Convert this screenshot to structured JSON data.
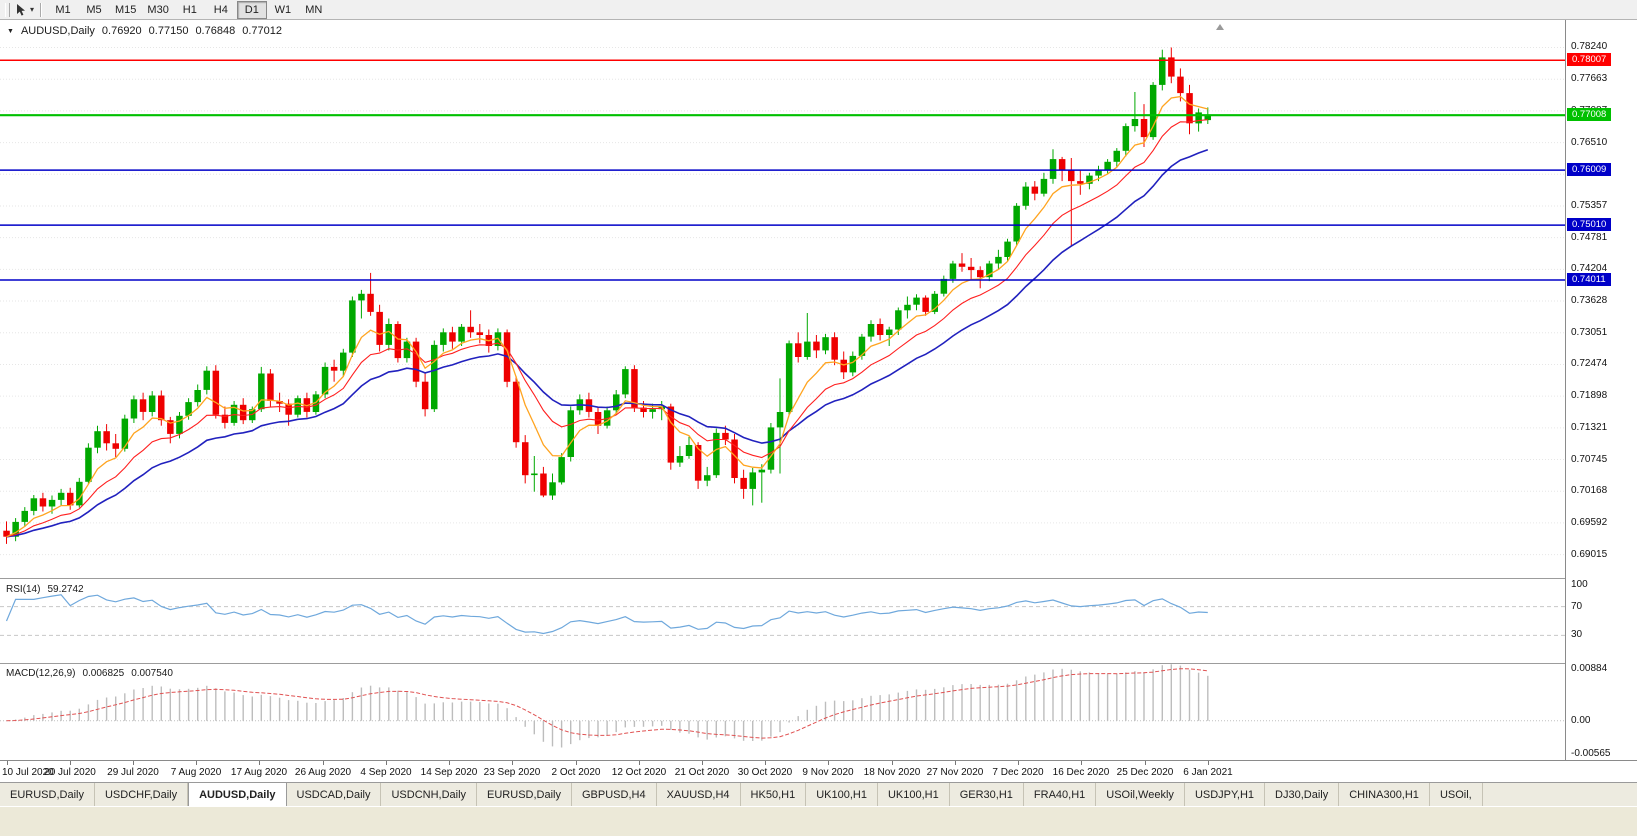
{
  "toolbar": {
    "timeframes": [
      "M1",
      "M5",
      "M15",
      "M30",
      "H1",
      "H4",
      "D1",
      "W1",
      "MN"
    ],
    "active": "D1"
  },
  "chart": {
    "symbol": "AUDUSD,Daily",
    "open": "0.76920",
    "high": "0.77150",
    "low": "0.76848",
    "close": "0.77012"
  },
  "rsi": {
    "title": "RSI(14)",
    "value": "59.2742"
  },
  "macd": {
    "title": "MACD(12,26,9)",
    "value_main": "0.006825",
    "value_signal": "0.007540"
  },
  "tabs": [
    {
      "label": "EURUSD,Daily"
    },
    {
      "label": "USDCHF,Daily"
    },
    {
      "label": "AUDUSD,Daily",
      "active": true
    },
    {
      "label": "USDCAD,Daily"
    },
    {
      "label": "USDCNH,Daily"
    },
    {
      "label": "EURUSD,Daily"
    },
    {
      "label": "GBPUSD,H4"
    },
    {
      "label": "XAUUSD,H4"
    },
    {
      "label": "HK50,H1"
    },
    {
      "label": "UK100,H1"
    },
    {
      "label": "UK100,H1"
    },
    {
      "label": "GER30,H1"
    },
    {
      "label": "FRA40,H1"
    },
    {
      "label": "USOil,Weekly"
    },
    {
      "label": "USDJPY,H1"
    },
    {
      "label": "DJ30,Daily"
    },
    {
      "label": "CHINA300,H1"
    },
    {
      "label": "USOil,"
    }
  ],
  "chart_data": {
    "type": "candlestick",
    "symbol": "AUDUSD",
    "timeframe": "Daily",
    "title": "AUDUSD,Daily 0.76920 0.77150 0.76848 0.77012",
    "price_range": [
      0.6859,
      0.7874
    ],
    "y_axis_ticks": [
      0.7824,
      0.77663,
      0.77087,
      0.7651,
      0.75934,
      0.75357,
      0.74781,
      0.74204,
      0.73628,
      0.73051,
      0.72474,
      0.71898,
      0.71321,
      0.70745,
      0.70168,
      0.69592,
      0.69015
    ],
    "h_lines": [
      {
        "name": "resistance-line-red",
        "value": 0.78007,
        "color": "#FF0000",
        "width": 1.5
      },
      {
        "name": "level-line-green",
        "value": 0.77008,
        "color": "#00C000",
        "width": 2.2
      },
      {
        "name": "support-line-blue-1",
        "value": 0.76009,
        "color": "#0000C8",
        "width": 1.5
      },
      {
        "name": "support-line-blue-2",
        "value": 0.7501,
        "color": "#0000C8",
        "width": 1.5
      },
      {
        "name": "support-line-blue-3",
        "value": 0.74011,
        "color": "#0000C8",
        "width": 1.5
      }
    ],
    "x_labels": [
      "10 Jul 2020",
      "20 Jul 2020",
      "29 Jul 2020",
      "7 Aug 2020",
      "17 Aug 2020",
      "26 Aug 2020",
      "4 Sep 2020",
      "14 Sep 2020",
      "23 Sep 2020",
      "2 Oct 2020",
      "12 Oct 2020",
      "21 Oct 2020",
      "30 Oct 2020",
      "9 Nov 2020",
      "18 Nov 2020",
      "27 Nov 2020",
      "7 Dec 2020",
      "16 Dec 2020",
      "25 Dec 2020",
      "6 Jan 2021"
    ],
    "moving_averages": [
      {
        "name": "ma-slow-blue",
        "period": 22,
        "color": "#2121BE",
        "width": 1.6
      },
      {
        "name": "ma-mid-red",
        "period": 12,
        "color": "#FF2020",
        "width": 1.1
      },
      {
        "name": "ma-fast-orange",
        "period": 6,
        "color": "#FFA420",
        "width": 1.3
      }
    ],
    "indicators": [
      {
        "name": "RSI",
        "period": 14,
        "last": 59.2742,
        "levels": [
          70,
          30
        ],
        "scale_labels": [
          {
            "label": "100",
            "value": 100
          },
          {
            "label": "70",
            "value": 70
          },
          {
            "label": "30",
            "value": 30
          }
        ],
        "color": "#6FA8DC"
      },
      {
        "name": "MACD",
        "fast": 12,
        "slow": 26,
        "signal_period": 9,
        "last_main": 0.006825,
        "last_signal": 0.00754,
        "scale_labels": [
          {
            "label": "0.00884",
            "value": 0.00884
          },
          {
            "label": "0.00",
            "value": 0
          },
          {
            "label": "-0.00565",
            "value": -0.00565
          }
        ],
        "histogram_color": "#BDBDBD",
        "signal_color": "#E05252"
      }
    ],
    "colors": {
      "bull": "#00A800",
      "bear": "#EE0000",
      "grid": "#E6E6E6",
      "rsi_level": "#C8C8C8",
      "zero_line": "#BFBFBF"
    },
    "candles": [
      [
        0.6945,
        0.6962,
        0.6921,
        0.6934
      ],
      [
        0.6934,
        0.6968,
        0.6926,
        0.6961
      ],
      [
        0.6961,
        0.6988,
        0.6952,
        0.6981
      ],
      [
        0.6981,
        0.701,
        0.6973,
        0.7004
      ],
      [
        0.7004,
        0.7014,
        0.698,
        0.6989
      ],
      [
        0.6989,
        0.7009,
        0.6976,
        0.7001
      ],
      [
        0.7001,
        0.7021,
        0.6991,
        0.7014
      ],
      [
        0.7014,
        0.7023,
        0.6983,
        0.6991
      ],
      [
        0.6991,
        0.7041,
        0.6987,
        0.7034
      ],
      [
        0.7034,
        0.7104,
        0.703,
        0.7096
      ],
      [
        0.7096,
        0.7136,
        0.7086,
        0.7126
      ],
      [
        0.7126,
        0.7139,
        0.7091,
        0.7104
      ],
      [
        0.7104,
        0.7121,
        0.7079,
        0.7094
      ],
      [
        0.7094,
        0.7156,
        0.7089,
        0.7149
      ],
      [
        0.7149,
        0.7191,
        0.7141,
        0.7184
      ],
      [
        0.7184,
        0.7196,
        0.7146,
        0.7161
      ],
      [
        0.7161,
        0.7199,
        0.7153,
        0.7191
      ],
      [
        0.7191,
        0.72,
        0.7136,
        0.7146
      ],
      [
        0.7146,
        0.7152,
        0.7104,
        0.7121
      ],
      [
        0.7121,
        0.7161,
        0.7113,
        0.7154
      ],
      [
        0.7154,
        0.7186,
        0.7147,
        0.7179
      ],
      [
        0.7179,
        0.7211,
        0.7171,
        0.7201
      ],
      [
        0.7201,
        0.7244,
        0.7193,
        0.7236
      ],
      [
        0.7236,
        0.7246,
        0.7149,
        0.7156
      ],
      [
        0.7156,
        0.7171,
        0.7131,
        0.7141
      ],
      [
        0.7141,
        0.7181,
        0.7136,
        0.7174
      ],
      [
        0.7174,
        0.7186,
        0.7139,
        0.7146
      ],
      [
        0.7146,
        0.7171,
        0.7141,
        0.7166
      ],
      [
        0.7166,
        0.7243,
        0.7161,
        0.7231
      ],
      [
        0.7231,
        0.7239,
        0.7171,
        0.7181
      ],
      [
        0.7181,
        0.7196,
        0.7161,
        0.7176
      ],
      [
        0.7176,
        0.7184,
        0.7136,
        0.7156
      ],
      [
        0.7156,
        0.7191,
        0.7151,
        0.7186
      ],
      [
        0.7186,
        0.7196,
        0.7151,
        0.7161
      ],
      [
        0.7161,
        0.7199,
        0.7156,
        0.7193
      ],
      [
        0.7193,
        0.7251,
        0.7186,
        0.7243
      ],
      [
        0.7243,
        0.7256,
        0.7216,
        0.7236
      ],
      [
        0.7236,
        0.7276,
        0.7226,
        0.7269
      ],
      [
        0.7269,
        0.7371,
        0.7261,
        0.7364
      ],
      [
        0.7364,
        0.7383,
        0.7331,
        0.7376
      ],
      [
        0.7376,
        0.7414,
        0.7336,
        0.7343
      ],
      [
        0.7343,
        0.7356,
        0.7271,
        0.7283
      ],
      [
        0.7283,
        0.7331,
        0.7273,
        0.7321
      ],
      [
        0.7321,
        0.7326,
        0.7251,
        0.7259
      ],
      [
        0.7259,
        0.7296,
        0.7251,
        0.7289
      ],
      [
        0.7289,
        0.7296,
        0.7206,
        0.7216
      ],
      [
        0.7216,
        0.7231,
        0.7153,
        0.7166
      ],
      [
        0.7166,
        0.7291,
        0.7161,
        0.7283
      ],
      [
        0.7283,
        0.7313,
        0.7271,
        0.7306
      ],
      [
        0.7306,
        0.7316,
        0.7276,
        0.7289
      ],
      [
        0.7289,
        0.7321,
        0.7281,
        0.7316
      ],
      [
        0.7316,
        0.7346,
        0.7296,
        0.7306
      ],
      [
        0.7306,
        0.7321,
        0.7286,
        0.7301
      ],
      [
        0.7301,
        0.7311,
        0.7269,
        0.7281
      ],
      [
        0.7281,
        0.7313,
        0.7273,
        0.7306
      ],
      [
        0.7306,
        0.7311,
        0.7206,
        0.7216
      ],
      [
        0.7216,
        0.7226,
        0.7096,
        0.7106
      ],
      [
        0.7106,
        0.7119,
        0.7031,
        0.7046
      ],
      [
        0.7046,
        0.7081,
        0.7016,
        0.7049
      ],
      [
        0.7049,
        0.7061,
        0.7006,
        0.7009
      ],
      [
        0.7009,
        0.7049,
        0.7001,
        0.7033
      ],
      [
        0.7033,
        0.7086,
        0.7029,
        0.7079
      ],
      [
        0.7079,
        0.7171,
        0.7071,
        0.7164
      ],
      [
        0.7164,
        0.7193,
        0.7156,
        0.7184
      ],
      [
        0.7184,
        0.7196,
        0.7151,
        0.7161
      ],
      [
        0.7161,
        0.7171,
        0.7121,
        0.7136
      ],
      [
        0.7136,
        0.7171,
        0.7131,
        0.7164
      ],
      [
        0.7164,
        0.7201,
        0.7156,
        0.7193
      ],
      [
        0.7193,
        0.7244,
        0.7186,
        0.7239
      ],
      [
        0.7239,
        0.7246,
        0.7161,
        0.7169
      ],
      [
        0.7169,
        0.7181,
        0.7151,
        0.7161
      ],
      [
        0.7161,
        0.7176,
        0.7149,
        0.7166
      ],
      [
        0.7166,
        0.7181,
        0.7146,
        0.7171
      ],
      [
        0.7171,
        0.7176,
        0.7056,
        0.7069
      ],
      [
        0.7069,
        0.7099,
        0.7061,
        0.7081
      ],
      [
        0.7081,
        0.7116,
        0.7076,
        0.7101
      ],
      [
        0.7101,
        0.7106,
        0.7021,
        0.7036
      ],
      [
        0.7036,
        0.7061,
        0.7026,
        0.7046
      ],
      [
        0.7046,
        0.7131,
        0.7041,
        0.7123
      ],
      [
        0.7123,
        0.7136,
        0.7101,
        0.7111
      ],
      [
        0.7111,
        0.7121,
        0.7031,
        0.7041
      ],
      [
        0.7041,
        0.7056,
        0.7003,
        0.7021
      ],
      [
        0.7021,
        0.7059,
        0.6991,
        0.7051
      ],
      [
        0.7051,
        0.7066,
        0.6996,
        0.7056
      ],
      [
        0.7056,
        0.7141,
        0.7049,
        0.7133
      ],
      [
        0.7133,
        0.7222,
        0.7049,
        0.7161
      ],
      [
        0.7161,
        0.7291,
        0.7156,
        0.7286
      ],
      [
        0.7286,
        0.7306,
        0.7251,
        0.7261
      ],
      [
        0.7261,
        0.7341,
        0.7256,
        0.7289
      ],
      [
        0.7289,
        0.7301,
        0.7259,
        0.7273
      ],
      [
        0.7273,
        0.7303,
        0.7266,
        0.7297
      ],
      [
        0.7297,
        0.7306,
        0.7246,
        0.7256
      ],
      [
        0.7256,
        0.7271,
        0.7221,
        0.7233
      ],
      [
        0.7233,
        0.7271,
        0.7226,
        0.7263
      ],
      [
        0.7263,
        0.7303,
        0.7256,
        0.7298
      ],
      [
        0.7298,
        0.7328,
        0.7289,
        0.7321
      ],
      [
        0.7321,
        0.7331,
        0.7291,
        0.7301
      ],
      [
        0.7301,
        0.7316,
        0.7281,
        0.7311
      ],
      [
        0.7311,
        0.7351,
        0.7301,
        0.7346
      ],
      [
        0.7346,
        0.7371,
        0.7331,
        0.7356
      ],
      [
        0.7356,
        0.7375,
        0.7346,
        0.7369
      ],
      [
        0.7369,
        0.7373,
        0.7336,
        0.7343
      ],
      [
        0.7343,
        0.7381,
        0.7339,
        0.7376
      ],
      [
        0.7376,
        0.7409,
        0.7371,
        0.7403
      ],
      [
        0.7403,
        0.7436,
        0.7396,
        0.7431
      ],
      [
        0.7431,
        0.745,
        0.7416,
        0.7425
      ],
      [
        0.7425,
        0.7441,
        0.7401,
        0.7419
      ],
      [
        0.7419,
        0.7426,
        0.7386,
        0.7406
      ],
      [
        0.7406,
        0.7436,
        0.7399,
        0.7431
      ],
      [
        0.7431,
        0.7456,
        0.7421,
        0.7443
      ],
      [
        0.7443,
        0.7476,
        0.7436,
        0.7471
      ],
      [
        0.7471,
        0.7541,
        0.7463,
        0.7536
      ],
      [
        0.7536,
        0.7579,
        0.7529,
        0.7571
      ],
      [
        0.7571,
        0.7581,
        0.7546,
        0.7558
      ],
      [
        0.7558,
        0.7596,
        0.7553,
        0.7585
      ],
      [
        0.7585,
        0.7639,
        0.7576,
        0.7621
      ],
      [
        0.7621,
        0.7625,
        0.7581,
        0.7601
      ],
      [
        0.7601,
        0.7623,
        0.7462,
        0.7581
      ],
      [
        0.7581,
        0.7601,
        0.7556,
        0.7576
      ],
      [
        0.7576,
        0.7596,
        0.7566,
        0.7591
      ],
      [
        0.7591,
        0.7609,
        0.7581,
        0.7601
      ],
      [
        0.7601,
        0.7621,
        0.7593,
        0.7616
      ],
      [
        0.7616,
        0.7641,
        0.7606,
        0.7636
      ],
      [
        0.7636,
        0.7686,
        0.7626,
        0.7681
      ],
      [
        0.7681,
        0.7743,
        0.7671,
        0.7694
      ],
      [
        0.7694,
        0.7721,
        0.7643,
        0.7661
      ],
      [
        0.7661,
        0.7761,
        0.7656,
        0.7756
      ],
      [
        0.7756,
        0.782,
        0.7746,
        0.7806
      ],
      [
        0.7806,
        0.7824,
        0.7759,
        0.7771
      ],
      [
        0.7771,
        0.7786,
        0.7726,
        0.7741
      ],
      [
        0.7741,
        0.7756,
        0.7666,
        0.7686
      ],
      [
        0.7686,
        0.7713,
        0.7671,
        0.7706
      ],
      [
        0.7692,
        0.7715,
        0.76848,
        0.77012
      ]
    ]
  }
}
